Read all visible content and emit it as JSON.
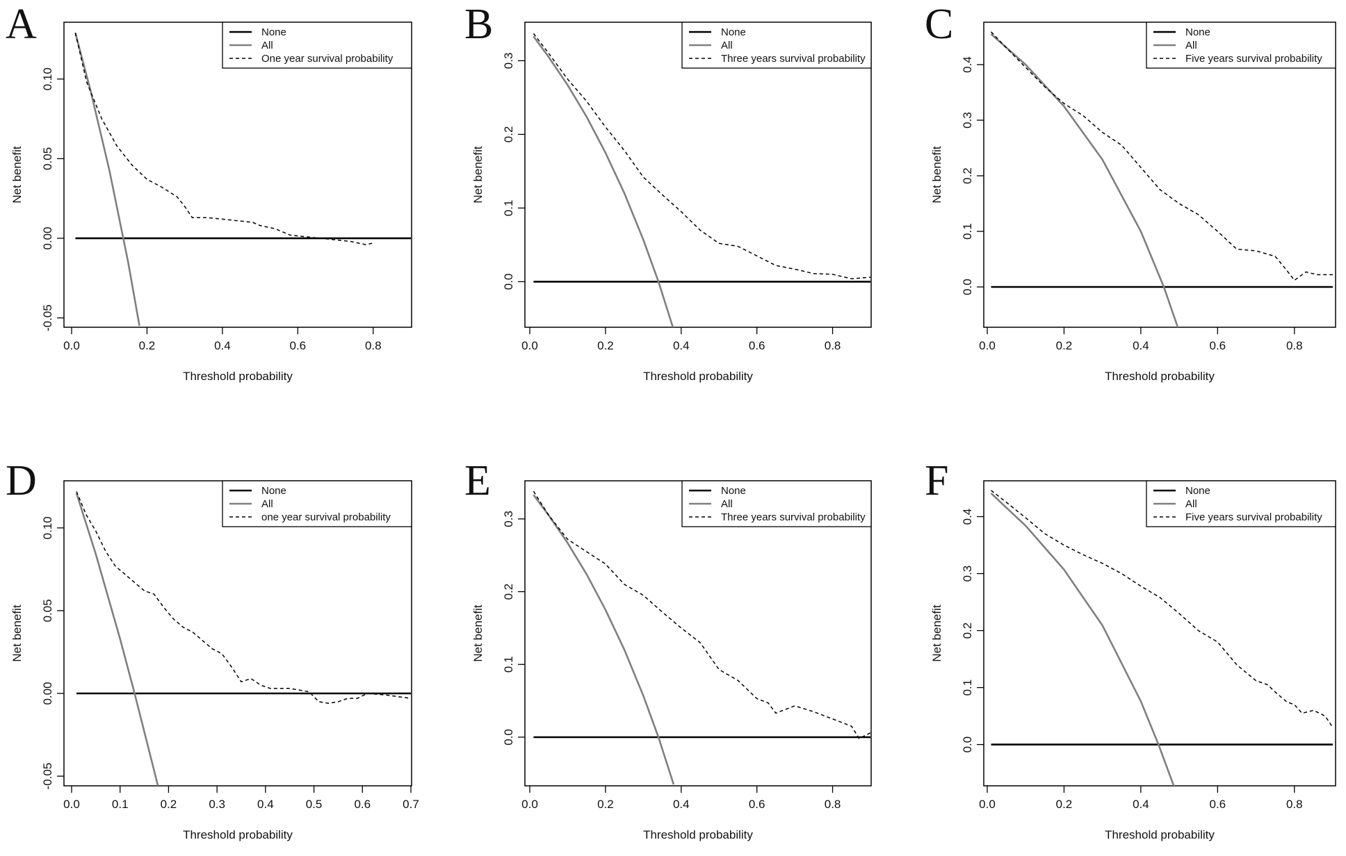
{
  "figure": {
    "description_type": "decision curve analysis grid",
    "colors": {
      "none_line": "#000000",
      "all_line": "#7f7f7f",
      "model_line": "#000000",
      "frame": "#000000"
    }
  },
  "chart_data": [
    {
      "panel": "A",
      "type": "line",
      "xlabel": "Threshold probability",
      "ylabel": "Net benefit",
      "xlim": [
        0,
        0.9
      ],
      "ylim": [
        -0.055,
        0.13
      ],
      "xticks": [
        0.0,
        0.2,
        0.4,
        0.6,
        0.8
      ],
      "xtick_labels": [
        "0.0",
        "0.2",
        "0.4",
        "0.6",
        "0.8"
      ],
      "yticks": [
        -0.05,
        0.0,
        0.05,
        0.1
      ],
      "ytick_labels": [
        "-0.05",
        "0.00",
        "0.05",
        "0.10"
      ],
      "legend": [
        "None",
        "All",
        "One year survival probability"
      ],
      "prevalence": 0.138,
      "series": [
        {
          "name": "None",
          "style": "solid-black",
          "x": [
            0.01,
            0.9
          ],
          "values": [
            0,
            0
          ]
        },
        {
          "name": "All",
          "style": "solid-gray",
          "x": [
            0.01,
            0.05,
            0.1,
            0.15,
            0.18
          ],
          "values": [
            0.129,
            0.093,
            0.043,
            -0.015,
            -0.055
          ]
        },
        {
          "name": "One year survival probability",
          "style": "dashed",
          "x": [
            0.01,
            0.04,
            0.08,
            0.12,
            0.16,
            0.2,
            0.24,
            0.28,
            0.3,
            0.32,
            0.36,
            0.4,
            0.44,
            0.48,
            0.5,
            0.54,
            0.58,
            0.62,
            0.66,
            0.7,
            0.74,
            0.78,
            0.8
          ],
          "values": [
            0.129,
            0.098,
            0.075,
            0.058,
            0.046,
            0.037,
            0.032,
            0.026,
            0.02,
            0.013,
            0.013,
            0.012,
            0.011,
            0.01,
            0.008,
            0.006,
            0.002,
            0.001,
            0.0,
            -0.001,
            -0.002,
            -0.004,
            -0.003
          ]
        }
      ]
    },
    {
      "panel": "B",
      "type": "line",
      "xlabel": "Threshold probability",
      "ylabel": "Net benefit",
      "xlim": [
        0,
        0.9
      ],
      "ylim": [
        -0.06,
        0.34
      ],
      "xticks": [
        0.0,
        0.2,
        0.4,
        0.6,
        0.8
      ],
      "xtick_labels": [
        "0.0",
        "0.2",
        "0.4",
        "0.6",
        "0.8"
      ],
      "yticks": [
        0.0,
        0.1,
        0.2,
        0.3
      ],
      "ytick_labels": [
        "0.0",
        "0.1",
        "0.2",
        "0.3"
      ],
      "legend": [
        "None",
        "All",
        "Three years survival probability"
      ],
      "prevalence": 0.34,
      "series": [
        {
          "name": "None",
          "style": "solid-black",
          "x": [
            0.01,
            0.9
          ],
          "values": [
            0,
            0
          ]
        },
        {
          "name": "All",
          "style": "solid-gray",
          "x": [
            0.01,
            0.05,
            0.1,
            0.15,
            0.2,
            0.25,
            0.3,
            0.34,
            0.38
          ],
          "values": [
            0.333,
            0.305,
            0.267,
            0.224,
            0.175,
            0.12,
            0.057,
            0.0,
            -0.065
          ]
        },
        {
          "name": "Three years survival probability",
          "style": "dashed",
          "x": [
            0.01,
            0.05,
            0.1,
            0.15,
            0.2,
            0.25,
            0.3,
            0.35,
            0.4,
            0.45,
            0.5,
            0.55,
            0.6,
            0.65,
            0.7,
            0.75,
            0.8,
            0.85,
            0.9
          ],
          "values": [
            0.337,
            0.31,
            0.275,
            0.245,
            0.21,
            0.178,
            0.142,
            0.118,
            0.095,
            0.07,
            0.052,
            0.048,
            0.035,
            0.022,
            0.017,
            0.011,
            0.01,
            0.004,
            0.006
          ]
        }
      ]
    },
    {
      "panel": "C",
      "type": "line",
      "xlabel": "Threshold probability",
      "ylabel": "Net benefit",
      "xlim": [
        0,
        0.9
      ],
      "ylim": [
        -0.07,
        0.46
      ],
      "xticks": [
        0.0,
        0.2,
        0.4,
        0.6,
        0.8
      ],
      "xtick_labels": [
        "0.0",
        "0.2",
        "0.4",
        "0.6",
        "0.8"
      ],
      "yticks": [
        0.0,
        0.1,
        0.2,
        0.3,
        0.4
      ],
      "ytick_labels": [
        "0.0",
        "0.1",
        "0.2",
        "0.3",
        "0.4"
      ],
      "legend": [
        "None",
        "All",
        "Five years survival probability"
      ],
      "prevalence": 0.46,
      "series": [
        {
          "name": "None",
          "style": "solid-black",
          "x": [
            0.01,
            0.9
          ],
          "values": [
            0,
            0
          ]
        },
        {
          "name": "All",
          "style": "solid-gray",
          "x": [
            0.01,
            0.1,
            0.2,
            0.3,
            0.4,
            0.46,
            0.5
          ],
          "values": [
            0.455,
            0.4,
            0.325,
            0.229,
            0.1,
            0.0,
            -0.08
          ]
        },
        {
          "name": "Five years survival probability",
          "style": "dashed",
          "x": [
            0.01,
            0.05,
            0.1,
            0.15,
            0.2,
            0.25,
            0.3,
            0.35,
            0.4,
            0.45,
            0.5,
            0.55,
            0.6,
            0.65,
            0.7,
            0.75,
            0.78,
            0.8,
            0.83,
            0.86,
            0.9
          ],
          "values": [
            0.459,
            0.43,
            0.395,
            0.36,
            0.33,
            0.308,
            0.278,
            0.255,
            0.215,
            0.175,
            0.15,
            0.13,
            0.1,
            0.068,
            0.065,
            0.055,
            0.03,
            0.012,
            0.027,
            0.022,
            0.022
          ]
        }
      ]
    },
    {
      "panel": "D",
      "type": "line",
      "xlabel": "Threshold probability",
      "ylabel": "Net benefit",
      "xlim": [
        0,
        0.7
      ],
      "ylim": [
        -0.055,
        0.123
      ],
      "xticks": [
        0.0,
        0.1,
        0.2,
        0.3,
        0.4,
        0.5,
        0.6,
        0.7
      ],
      "xtick_labels": [
        "0.0",
        "0.1",
        "0.2",
        "0.3",
        "0.4",
        "0.5",
        "0.6",
        "0.7"
      ],
      "yticks": [
        -0.05,
        0.0,
        0.05,
        0.1
      ],
      "ytick_labels": [
        "-0.05",
        "0.00",
        "0.05",
        "0.10"
      ],
      "legend": [
        "None",
        "All",
        "one year survival probability"
      ],
      "prevalence": 0.13,
      "series": [
        {
          "name": "None",
          "style": "solid-black",
          "x": [
            0.01,
            0.7
          ],
          "values": [
            0,
            0
          ]
        },
        {
          "name": "All",
          "style": "solid-gray",
          "x": [
            0.01,
            0.05,
            0.1,
            0.13,
            0.18
          ],
          "values": [
            0.121,
            0.084,
            0.033,
            0.0,
            -0.058
          ]
        },
        {
          "name": "one year survival probability",
          "style": "dashed",
          "x": [
            0.01,
            0.03,
            0.05,
            0.07,
            0.09,
            0.11,
            0.13,
            0.15,
            0.17,
            0.19,
            0.21,
            0.23,
            0.25,
            0.27,
            0.29,
            0.31,
            0.33,
            0.35,
            0.37,
            0.39,
            0.41,
            0.45,
            0.49,
            0.51,
            0.53,
            0.55,
            0.57,
            0.59,
            0.61,
            0.65,
            0.7
          ],
          "values": [
            0.122,
            0.108,
            0.098,
            0.086,
            0.077,
            0.072,
            0.067,
            0.062,
            0.06,
            0.052,
            0.045,
            0.04,
            0.037,
            0.032,
            0.027,
            0.024,
            0.016,
            0.007,
            0.009,
            0.005,
            0.003,
            0.003,
            0.001,
            -0.005,
            -0.006,
            -0.005,
            -0.003,
            -0.003,
            0.0,
            -0.001,
            -0.003
          ]
        }
      ]
    },
    {
      "panel": "E",
      "type": "line",
      "xlabel": "Threshold probability",
      "ylabel": "Net benefit",
      "xlim": [
        0,
        0.9
      ],
      "ylim": [
        -0.065,
        0.34
      ],
      "xticks": [
        0.0,
        0.2,
        0.4,
        0.6,
        0.8
      ],
      "xtick_labels": [
        "0.0",
        "0.2",
        "0.4",
        "0.6",
        "0.8"
      ],
      "yticks": [
        0.0,
        0.1,
        0.2,
        0.3
      ],
      "ytick_labels": [
        "0.0",
        "0.1",
        "0.2",
        "0.3"
      ],
      "legend": [
        "None",
        "All",
        "Three years survival probability"
      ],
      "prevalence": 0.34,
      "series": [
        {
          "name": "None",
          "style": "solid-black",
          "x": [
            0.01,
            0.9
          ],
          "values": [
            0,
            0
          ]
        },
        {
          "name": "All",
          "style": "solid-gray",
          "x": [
            0.01,
            0.05,
            0.1,
            0.15,
            0.2,
            0.25,
            0.3,
            0.34,
            0.38
          ],
          "values": [
            0.333,
            0.305,
            0.267,
            0.224,
            0.175,
            0.12,
            0.057,
            0.0,
            -0.065
          ]
        },
        {
          "name": "Three years survival probability",
          "style": "dashed",
          "x": [
            0.01,
            0.05,
            0.1,
            0.15,
            0.2,
            0.25,
            0.3,
            0.35,
            0.4,
            0.45,
            0.5,
            0.55,
            0.6,
            0.63,
            0.65,
            0.7,
            0.75,
            0.8,
            0.85,
            0.87,
            0.9
          ],
          "values": [
            0.338,
            0.305,
            0.272,
            0.255,
            0.238,
            0.21,
            0.195,
            0.172,
            0.15,
            0.13,
            0.093,
            0.078,
            0.053,
            0.047,
            0.033,
            0.043,
            0.035,
            0.025,
            0.015,
            -0.002,
            0.006
          ]
        }
      ]
    },
    {
      "panel": "F",
      "type": "line",
      "xlabel": "Threshold probability",
      "ylabel": "Net benefit",
      "xlim": [
        0,
        0.9
      ],
      "ylim": [
        -0.07,
        0.447
      ],
      "xticks": [
        0.0,
        0.2,
        0.4,
        0.6,
        0.8
      ],
      "xtick_labels": [
        "0.0",
        "0.2",
        "0.4",
        "0.6",
        "0.8"
      ],
      "yticks": [
        0.0,
        0.1,
        0.2,
        0.3,
        0.4
      ],
      "ytick_labels": [
        "0.0",
        "0.1",
        "0.2",
        "0.3",
        "0.4"
      ],
      "legend": [
        "None",
        "All",
        "Five years survival probability"
      ],
      "prevalence": 0.446,
      "series": [
        {
          "name": "None",
          "style": "solid-black",
          "x": [
            0.01,
            0.9
          ],
          "values": [
            0,
            0
          ]
        },
        {
          "name": "All",
          "style": "solid-gray",
          "x": [
            0.01,
            0.1,
            0.2,
            0.3,
            0.4,
            0.446,
            0.49
          ],
          "values": [
            0.441,
            0.384,
            0.307,
            0.209,
            0.076,
            0.0,
            -0.08
          ]
        },
        {
          "name": "Five years survival probability",
          "style": "dashed",
          "x": [
            0.01,
            0.05,
            0.1,
            0.15,
            0.2,
            0.25,
            0.3,
            0.35,
            0.4,
            0.45,
            0.5,
            0.55,
            0.6,
            0.65,
            0.7,
            0.73,
            0.75,
            0.78,
            0.8,
            0.82,
            0.85,
            0.88,
            0.9
          ],
          "values": [
            0.446,
            0.425,
            0.398,
            0.37,
            0.35,
            0.333,
            0.318,
            0.3,
            0.278,
            0.258,
            0.23,
            0.2,
            0.18,
            0.14,
            0.112,
            0.105,
            0.092,
            0.075,
            0.07,
            0.055,
            0.06,
            0.05,
            0.03
          ]
        }
      ]
    }
  ]
}
